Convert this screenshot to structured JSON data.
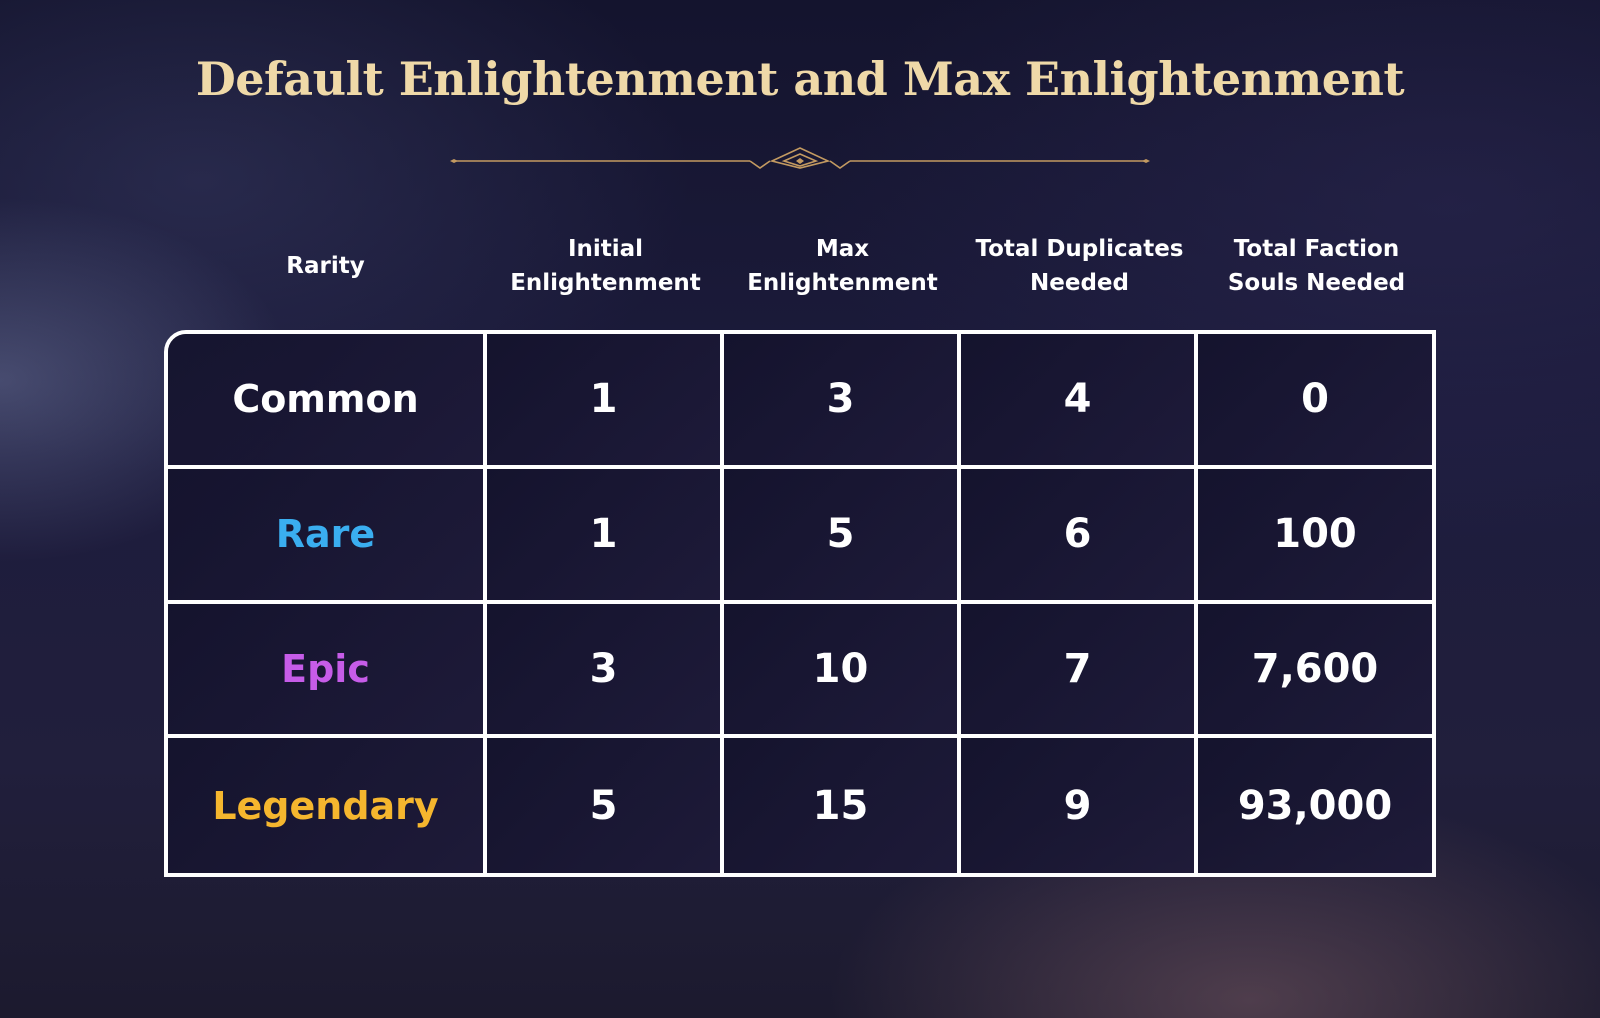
{
  "title": "Default Enlightenment and Max Enlightenment",
  "colors": {
    "title": "#efd9a8",
    "ornament": "#c39a61",
    "common": "#ffffff",
    "rare": "#3aaef0",
    "epic": "#c65ce8",
    "legendary": "#f5b62e",
    "grid": "#ffffff"
  },
  "table": {
    "headers": [
      "Rarity",
      "Initial\nEnlightenment",
      "Max\nEnlightenment",
      "Total Duplicates\nNeeded",
      "Total Faction\nSouls Needed"
    ],
    "rows": [
      {
        "rarity": "Common",
        "color": "#ffffff",
        "values": [
          "1",
          "3",
          "4",
          "0"
        ]
      },
      {
        "rarity": "Rare",
        "color": "#3aaef0",
        "values": [
          "1",
          "5",
          "6",
          "100"
        ]
      },
      {
        "rarity": "Epic",
        "color": "#c65ce8",
        "values": [
          "3",
          "10",
          "7",
          "7,600"
        ]
      },
      {
        "rarity": "Legendary",
        "color": "#f5b62e",
        "values": [
          "5",
          "15",
          "9",
          "93,000"
        ]
      }
    ]
  }
}
